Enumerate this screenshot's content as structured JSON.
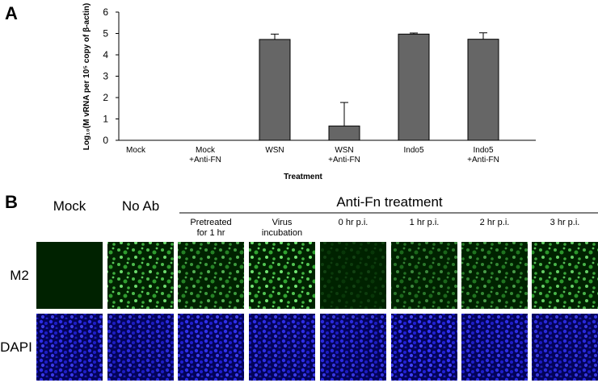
{
  "panel_a_label": "A",
  "chart_data": {
    "type": "bar",
    "y_label": "Log₁₀(M vRNA  per 10⁵ copy of β-actin)",
    "x_label": "Treatment",
    "categories": [
      "Mock",
      "Mock\n+Anti-FN",
      "WSN",
      "WSN\n+Anti-FN",
      "Indo5",
      "Indo5\n+Anti-FN"
    ],
    "values": [
      0,
      0,
      4.72,
      0.67,
      4.97,
      4.73
    ],
    "errors": [
      null,
      null,
      0.25,
      1.1,
      0.05,
      0.3
    ],
    "color": "#666666",
    "ylim": [
      0,
      6
    ],
    "yticks": [
      0,
      1,
      2,
      3,
      4,
      5,
      6
    ]
  },
  "panel_b": {
    "label": "B",
    "columns": [
      "Mock",
      "No Ab"
    ],
    "group": "Anti-Fn treatment",
    "subcolumns": [
      "Pretreated\nfor 1 hr",
      "Virus\nincubation",
      "0 hr p.i.",
      "1 hr p.i.",
      "2 hr p.i.",
      "3 hr p.i."
    ],
    "rows": [
      "M2",
      "DAPI"
    ]
  }
}
